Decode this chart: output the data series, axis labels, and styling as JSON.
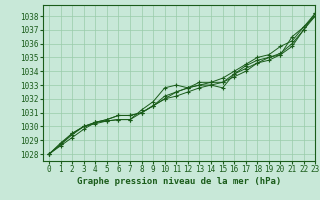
{
  "title": "Graphe pression niveau de la mer (hPa)",
  "background_color": "#c8e8d8",
  "plot_bg_color": "#c8e8d8",
  "grid_color": "#99ccaa",
  "line_color": "#1a5c1a",
  "marker": "+",
  "xlim": [
    -0.5,
    23
  ],
  "ylim": [
    1027.5,
    1038.8
  ],
  "yticks": [
    1028,
    1029,
    1030,
    1031,
    1032,
    1033,
    1034,
    1035,
    1036,
    1037,
    1038
  ],
  "xticks": [
    0,
    1,
    2,
    3,
    4,
    5,
    6,
    7,
    8,
    9,
    10,
    11,
    12,
    13,
    14,
    15,
    16,
    17,
    18,
    19,
    20,
    21,
    22,
    23
  ],
  "series": [
    [
      1028.0,
      1028.6,
      1029.2,
      1029.8,
      1030.3,
      1030.5,
      1030.8,
      1030.8,
      1031.0,
      1031.5,
      1032.0,
      1032.2,
      1032.5,
      1032.8,
      1033.0,
      1033.2,
      1033.8,
      1034.2,
      1034.6,
      1035.0,
      1035.2,
      1035.8,
      1037.0,
      1038.0
    ],
    [
      1028.0,
      1028.7,
      1029.4,
      1030.0,
      1030.2,
      1030.4,
      1030.5,
      1030.5,
      1031.2,
      1031.8,
      1032.8,
      1033.0,
      1032.8,
      1033.2,
      1033.2,
      1033.2,
      1033.6,
      1034.0,
      1034.6,
      1034.8,
      1035.2,
      1036.5,
      1037.2,
      1038.2
    ],
    [
      1028.0,
      1028.7,
      1029.5,
      1030.0,
      1030.3,
      1030.4,
      1030.5,
      1030.5,
      1031.0,
      1031.5,
      1032.2,
      1032.5,
      1032.8,
      1033.0,
      1033.0,
      1032.8,
      1033.8,
      1034.4,
      1034.8,
      1035.0,
      1035.3,
      1036.0,
      1037.0,
      1038.2
    ],
    [
      1028.0,
      1028.8,
      1029.5,
      1030.0,
      1030.3,
      1030.5,
      1030.8,
      1030.8,
      1031.0,
      1031.5,
      1032.0,
      1032.5,
      1032.8,
      1033.0,
      1033.2,
      1033.5,
      1034.0,
      1034.5,
      1035.0,
      1035.2,
      1035.8,
      1036.2,
      1037.2,
      1038.0
    ]
  ],
  "title_fontsize": 6.5,
  "tick_fontsize": 5.5
}
